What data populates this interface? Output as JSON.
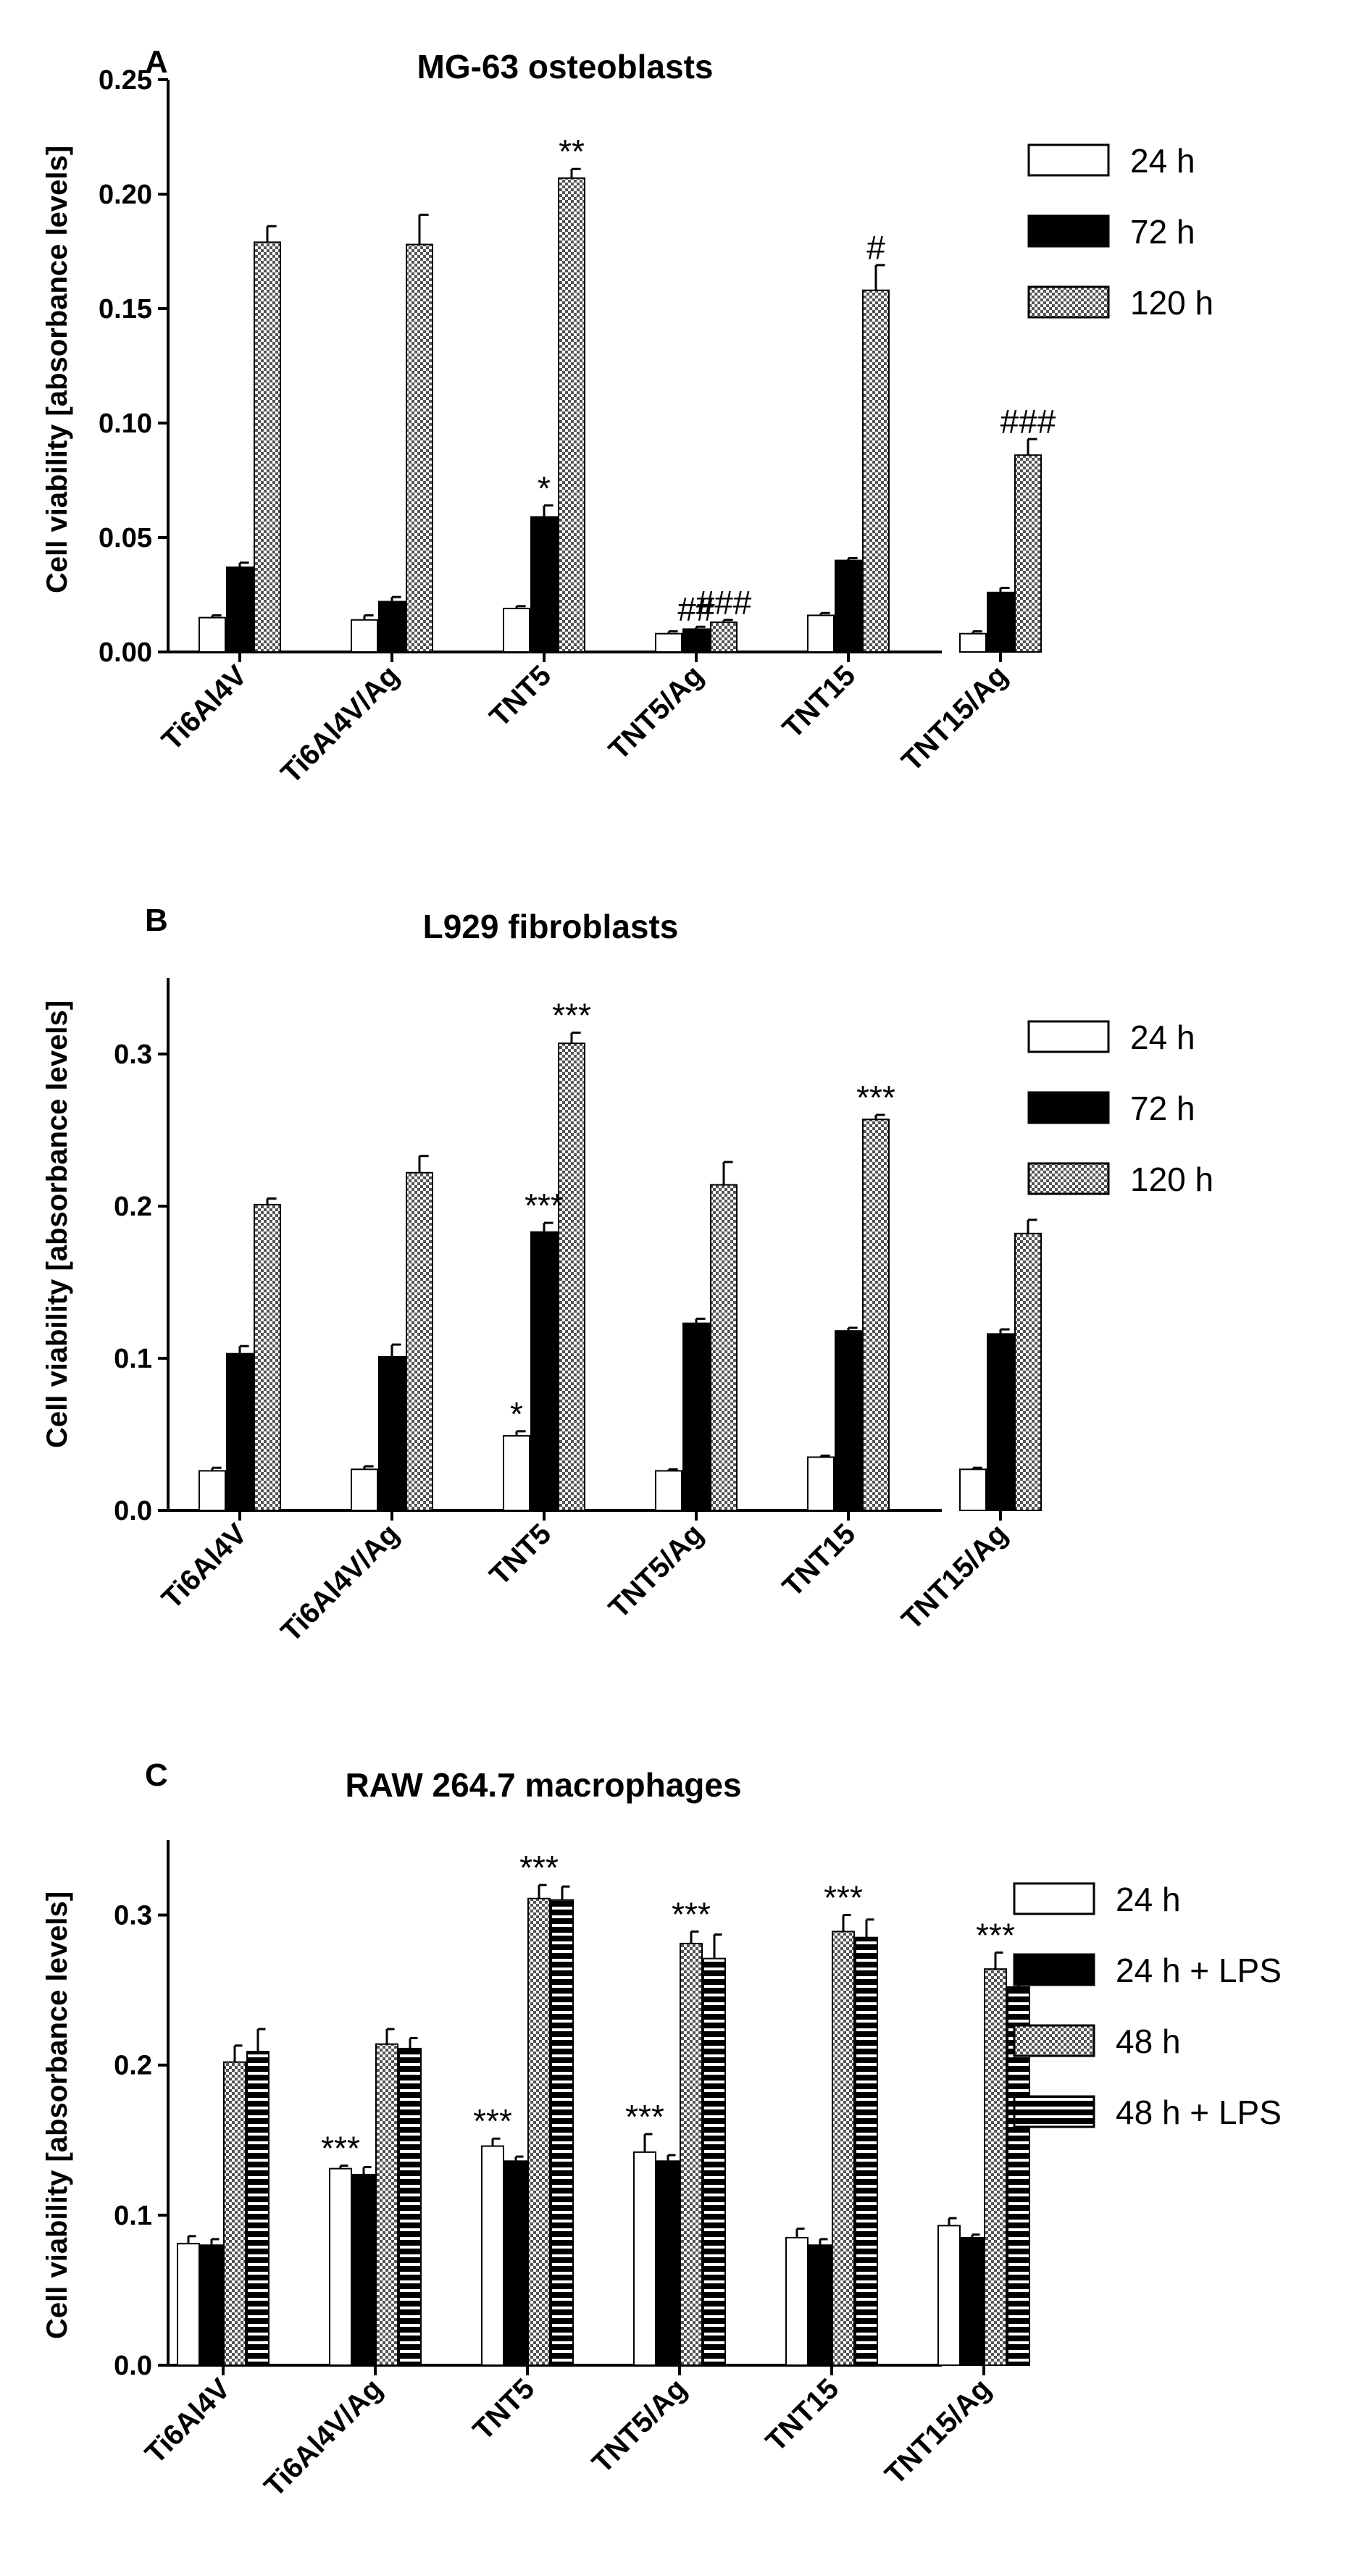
{
  "chart_data": [
    {
      "type": "bar",
      "panel": "A",
      "title": "MG-63 osteoblasts",
      "xlabel": "",
      "ylabel": "Cell viability [absorbance levels]",
      "ylim": [
        0,
        0.25
      ],
      "yticks": [
        "0.00",
        "0.05",
        "0.10",
        "0.15",
        "0.20",
        "0.25"
      ],
      "yticks_values": [
        0,
        0.05,
        0.1,
        0.15,
        0.2,
        0.25
      ],
      "categories": [
        "Ti6Al4V",
        "Ti6Al4V/Ag",
        "TNT5",
        "TNT5/Ag",
        "TNT15",
        "TNT15/Ag"
      ],
      "series": [
        {
          "name": "24 h",
          "pattern": "white",
          "values": [
            0.015,
            0.014,
            0.019,
            0.008,
            0.016,
            0.008
          ],
          "errors": [
            0.001,
            0.002,
            0.001,
            0.001,
            0.001,
            0.001
          ]
        },
        {
          "name": "72 h",
          "pattern": "black",
          "values": [
            0.037,
            0.022,
            0.059,
            0.01,
            0.04,
            0.026
          ],
          "errors": [
            0.002,
            0.002,
            0.005,
            0.001,
            0.001,
            0.002
          ]
        },
        {
          "name": "120 h",
          "pattern": "checker",
          "values": [
            0.179,
            0.178,
            0.207,
            0.013,
            0.158,
            0.086
          ],
          "errors": [
            0.007,
            0.013,
            0.004,
            0.001,
            0.011,
            0.007
          ]
        }
      ],
      "annotations": [
        {
          "category": 2,
          "series": 1,
          "text": "*"
        },
        {
          "category": 2,
          "series": 2,
          "text": "**"
        },
        {
          "category": 3,
          "series": 1,
          "text": "##"
        },
        {
          "category": 3,
          "series": 2,
          "text": "###"
        },
        {
          "category": 4,
          "series": 2,
          "text": "#"
        },
        {
          "category": 5,
          "series": 2,
          "text": "###"
        }
      ]
    },
    {
      "type": "bar",
      "panel": "B",
      "title": "L929 fibroblasts",
      "xlabel": "",
      "ylabel": "Cell viability [absorbance levels]",
      "ylim": [
        0,
        0.35
      ],
      "yticks": [
        "0.0",
        "0.1",
        "0.2",
        "0.3"
      ],
      "yticks_values": [
        0,
        0.1,
        0.2,
        0.3
      ],
      "categories": [
        "Ti6Al4V",
        "Ti6Al4V/Ag",
        "TNT5",
        "TNT5/Ag",
        "TNT15",
        "TNT15/Ag"
      ],
      "series": [
        {
          "name": "24 h",
          "pattern": "white",
          "values": [
            0.026,
            0.027,
            0.049,
            0.026,
            0.035,
            0.027
          ],
          "errors": [
            0.002,
            0.002,
            0.003,
            0.001,
            0.001,
            0.001
          ]
        },
        {
          "name": "72 h",
          "pattern": "black",
          "values": [
            0.103,
            0.101,
            0.183,
            0.123,
            0.118,
            0.116
          ],
          "errors": [
            0.005,
            0.008,
            0.006,
            0.003,
            0.002,
            0.003
          ]
        },
        {
          "name": "120 h",
          "pattern": "checker",
          "values": [
            0.201,
            0.222,
            0.307,
            0.214,
            0.257,
            0.182
          ],
          "errors": [
            0.004,
            0.011,
            0.007,
            0.015,
            0.003,
            0.009
          ]
        }
      ],
      "annotations": [
        {
          "category": 2,
          "series": 0,
          "text": "*"
        },
        {
          "category": 2,
          "series": 1,
          "text": "***"
        },
        {
          "category": 2,
          "series": 2,
          "text": "***"
        },
        {
          "category": 4,
          "series": 2,
          "text": "***"
        }
      ]
    },
    {
      "type": "bar",
      "panel": "C",
      "title": "RAW 264.7 macrophages",
      "xlabel": "",
      "ylabel": "Cell viability [absorbance levels]",
      "ylim": [
        0,
        0.35
      ],
      "yticks": [
        "0.0",
        "0.1",
        "0.2",
        "0.3"
      ],
      "yticks_values": [
        0,
        0.1,
        0.2,
        0.3
      ],
      "categories": [
        "Ti6Al4V",
        "Ti6Al4V/Ag",
        "TNT5",
        "TNT5/Ag",
        "TNT15",
        "TNT15/Ag"
      ],
      "series": [
        {
          "name": "24 h",
          "pattern": "white",
          "values": [
            0.081,
            0.131,
            0.146,
            0.142,
            0.085,
            0.093
          ],
          "errors": [
            0.005,
            0.002,
            0.005,
            0.012,
            0.006,
            0.005
          ]
        },
        {
          "name": "24 h + LPS",
          "pattern": "black",
          "values": [
            0.08,
            0.127,
            0.136,
            0.136,
            0.08,
            0.085
          ],
          "errors": [
            0.004,
            0.005,
            0.003,
            0.004,
            0.004,
            0.002
          ]
        },
        {
          "name": "48 h",
          "pattern": "checker",
          "values": [
            0.202,
            0.214,
            0.311,
            0.281,
            0.289,
            0.264
          ],
          "errors": [
            0.011,
            0.01,
            0.009,
            0.008,
            0.011,
            0.011
          ]
        },
        {
          "name": "48 h + LPS",
          "pattern": "hstripe",
          "values": [
            0.209,
            0.211,
            0.31,
            0.271,
            0.285,
            0.252
          ],
          "errors": [
            0.015,
            0.007,
            0.009,
            0.016,
            0.012,
            0.004
          ]
        }
      ],
      "annotations": [
        {
          "category": 1,
          "series": 0,
          "text": "***"
        },
        {
          "category": 2,
          "series": 0,
          "text": "***"
        },
        {
          "category": 2,
          "series": 2,
          "text": "***"
        },
        {
          "category": 3,
          "series": 0,
          "text": "***"
        },
        {
          "category": 3,
          "series": 2,
          "text": "***"
        },
        {
          "category": 4,
          "series": 2,
          "text": "***"
        },
        {
          "category": 5,
          "series": 2,
          "text": "***"
        }
      ]
    }
  ]
}
